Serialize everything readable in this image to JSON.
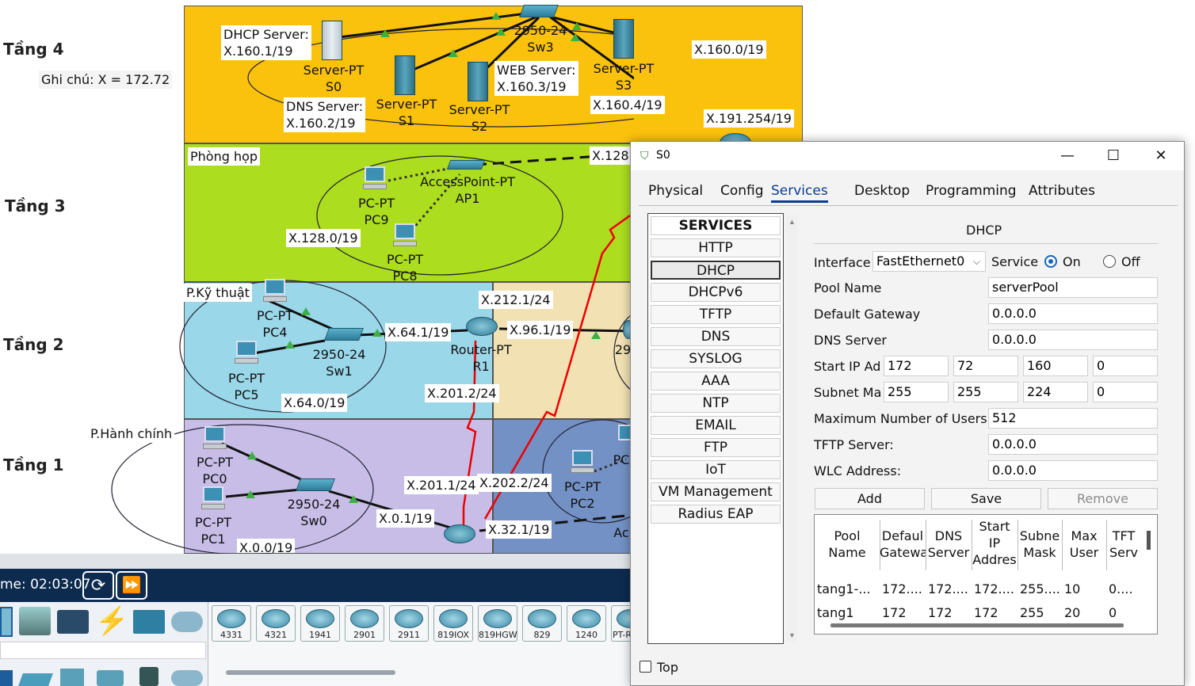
{
  "floors": [
    "Tầng 4",
    "Tầng 3",
    "Tầng 2",
    "Tầng 1"
  ],
  "note": "Ghi chú: X = 172.72",
  "topology": {
    "labels": {
      "dhcp_server": "DHCP Server:",
      "dhcp_server_ip": "X.160.1/19",
      "server_s0": "Server-PT",
      "server_s0_name": "S0",
      "dns_server": "DNS Server:",
      "dns_server_ip": "X.160.2/19",
      "server_s1": "Server-PT",
      "server_s1_name": "S1",
      "server_s2": "Server-PT",
      "server_s2_name": "S2",
      "web_server": "WEB Server:",
      "web_server_ip": "X.160.3/19",
      "switch_sw3": "2950-24",
      "switch_sw3_name": "Sw3",
      "server_s3": "Server-PT",
      "server_s3_name": "S3",
      "net_160": "X.160.0/19",
      "net_160_4": "X.160.4/19",
      "net_191": "X.191.254/19",
      "room_meeting": "Phòng họp",
      "net_128_cut": "X.128",
      "ap": "AccessPoint-PT",
      "ap_name": "AP1",
      "pc9": "PC-PT",
      "pc9_name": "PC9",
      "pc8": "PC-PT",
      "pc8_name": "PC8",
      "net_128": "X.128.0/19",
      "room_tech": "P.Kỹ thuật",
      "pc4": "PC-PT",
      "pc4_name": "PC4",
      "pc5": "PC-PT",
      "pc5_name": "PC5",
      "sw1": "2950-24",
      "sw1_name": "Sw1",
      "net_64_1": "X.64.1/19",
      "net_64": "X.64.0/19",
      "net_212": "X.212.1/24",
      "router_r1": "Router-PT",
      "router_r1_name": "R1",
      "net_96": "X.96.1/19",
      "net_201_2": "X.201.2/24",
      "partial_29": "29",
      "room_admin": "P.Hành chính",
      "pc0": "PC-PT",
      "pc0_name": "PC0",
      "pc1": "PC-PT",
      "pc1_name": "PC1",
      "sw0": "2950-24",
      "sw0_name": "Sw0",
      "net_201_1": "X.201.1/24",
      "net_202": "X.202.2/24",
      "net_0_1": "X.0.1/19",
      "net_0": "X.0.0/19",
      "net_32": "X.32.1/19",
      "pc2": "PC-PT",
      "pc2_name": "PC2",
      "partial_pc": "PC",
      "partial_ac": "Ac"
    }
  },
  "timebar": {
    "time": "me: 02:03:07"
  },
  "device_tray": {
    "routers": [
      "4331",
      "4321",
      "1941",
      "2901",
      "2911",
      "819IOX",
      "819HGW",
      "829",
      "1240",
      "PT-R"
    ]
  },
  "dialog": {
    "title": "S0",
    "window_buttons": {
      "minimize": "—",
      "maximize": "☐",
      "close": "✕"
    },
    "tabs": [
      "Physical",
      "Config",
      "Services",
      "Desktop",
      "Programming",
      "Attributes"
    ],
    "active_tab": "Services",
    "services_header": "SERVICES",
    "services": [
      "HTTP",
      "DHCP",
      "DHCPv6",
      "TFTP",
      "DNS",
      "SYSLOG",
      "AAA",
      "NTP",
      "EMAIL",
      "FTP",
      "IoT",
      "VM Management",
      "Radius EAP"
    ],
    "selected_service": "DHCP",
    "panel_title": "DHCP",
    "interface_label": "Interface",
    "interface_value": "FastEthernet0",
    "service_label": "Service",
    "on_label": "On",
    "off_label": "Off",
    "pool_name_label": "Pool Name",
    "pool_name_value": "serverPool",
    "default_gateway_label": "Default Gateway",
    "default_gateway_value": "0.0.0.0",
    "dns_server_label": "DNS Server",
    "dns_server_value": "0.0.0.0",
    "start_ip_label": "Start IP Ad",
    "start_ip": [
      "172",
      "72",
      "160",
      "0"
    ],
    "subnet_label": "Subnet Ma",
    "subnet": [
      "255",
      "255",
      "224",
      "0"
    ],
    "max_users_label": "Maximum Number of Users :",
    "max_users_value": "512",
    "tftp_label": "TFTP Server:",
    "tftp_value": "0.0.0.0",
    "wlc_label": "WLC Address:",
    "wlc_value": "0.0.0.0",
    "buttons": {
      "add": "Add",
      "save": "Save",
      "remove": "Remove"
    },
    "table": {
      "headers": [
        "Pool\nName",
        "Defaul\nGatewa",
        "DNS\nServer",
        "Start\nIP\nAddres",
        "Subne\nMask",
        "Max\nUser",
        "TFT\nServ"
      ],
      "rows": [
        [
          "tang1-...",
          "172....",
          "172....",
          "172....",
          "255....",
          "10",
          "0...."
        ],
        [
          "tang1",
          "172",
          "172",
          "172",
          "255",
          "20",
          "0"
        ]
      ]
    },
    "top_label": "Top"
  }
}
